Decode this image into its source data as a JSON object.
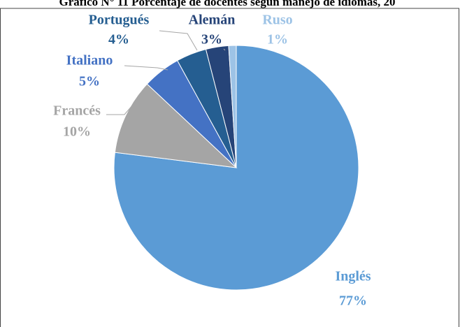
{
  "chart_data": {
    "type": "pie",
    "title": "Gráfico N° 11 Porcentaje de docentes según manejo de idiomas, 20",
    "categories": [
      "Inglés",
      "Francés",
      "Italiano",
      "Portugués",
      "Alemán",
      "Ruso"
    ],
    "values": [
      77,
      10,
      5,
      4,
      3,
      1
    ],
    "value_labels": [
      "77%",
      "10%",
      "5%",
      "4%",
      "3%",
      "1%"
    ],
    "colors": [
      "#5b9bd5",
      "#a5a5a5",
      "#4472c4",
      "#255e91",
      "#264478",
      "#9dc3e6"
    ]
  }
}
